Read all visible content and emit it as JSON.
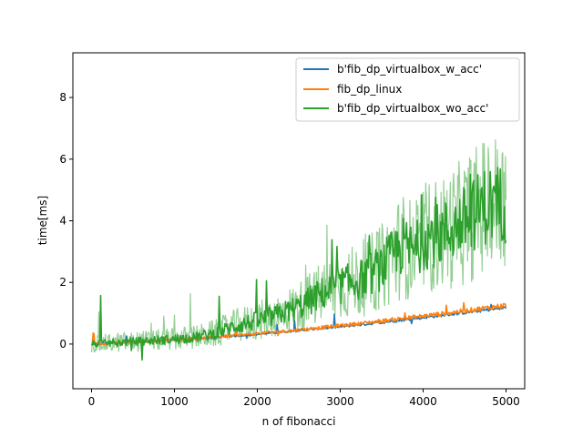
{
  "chart_data": {
    "type": "line",
    "xlabel": "n of fibonacci",
    "ylabel": "time[ms]",
    "xlim": [
      -225,
      5225
    ],
    "ylim": [
      -1.45,
      9.45
    ],
    "xticks": [
      0,
      1000,
      2000,
      3000,
      4000,
      5000
    ],
    "xtick_labels": [
      "0",
      "1000",
      "2000",
      "3000",
      "4000",
      "5000"
    ],
    "yticks": [
      0,
      2,
      4,
      6,
      8
    ],
    "ytick_labels": [
      "0",
      "2",
      "4",
      "6",
      "8"
    ],
    "grid": false,
    "legend_position": "top-right",
    "series": [
      {
        "name": "b'fib_dp_virtualbox_w_acc'",
        "color": "#1f77b4",
        "x": [
          0,
          250,
          500,
          750,
          1000,
          1250,
          1500,
          1750,
          2000,
          2250,
          2500,
          2750,
          3000,
          3250,
          3500,
          3750,
          4000,
          4250,
          4500,
          4750,
          5000
        ],
        "y": [
          0.0,
          0.03,
          0.06,
          0.1,
          0.13,
          0.17,
          0.22,
          0.27,
          0.32,
          0.38,
          0.44,
          0.5,
          0.56,
          0.63,
          0.7,
          0.78,
          0.86,
          0.94,
          1.02,
          1.1,
          1.18
        ]
      },
      {
        "name": "fib_dp_linux",
        "color": "#ff7f0e",
        "x": [
          0,
          250,
          500,
          750,
          1000,
          1250,
          1500,
          1750,
          2000,
          2250,
          2500,
          2750,
          3000,
          3250,
          3500,
          3750,
          4000,
          4250,
          4500,
          4750,
          5000
        ],
        "y": [
          0.0,
          0.03,
          0.06,
          0.1,
          0.14,
          0.18,
          0.23,
          0.28,
          0.34,
          0.4,
          0.46,
          0.53,
          0.6,
          0.67,
          0.75,
          0.83,
          0.91,
          0.99,
          1.08,
          1.17,
          1.26
        ]
      },
      {
        "name": "b'fib_dp_virtualbox_wo_acc'",
        "color": "#2ca02c",
        "x": [
          0,
          250,
          500,
          750,
          1000,
          1250,
          1500,
          1750,
          2000,
          2250,
          2500,
          2750,
          3000,
          3250,
          3500,
          3750,
          3900,
          4000,
          4250,
          4500,
          4750,
          5000
        ],
        "y": [
          0.0,
          0.04,
          0.08,
          0.12,
          0.16,
          0.22,
          0.35,
          0.6,
          0.75,
          0.95,
          1.2,
          1.6,
          1.9,
          2.1,
          2.5,
          3.2,
          3.0,
          3.4,
          3.6,
          4.0,
          4.5,
          4.6
        ]
      }
    ]
  }
}
